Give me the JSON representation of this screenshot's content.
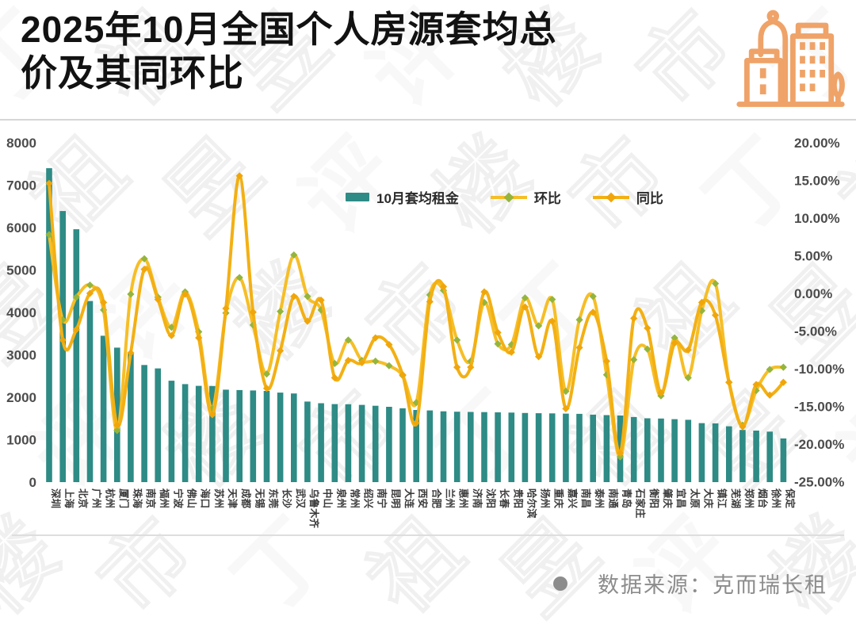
{
  "title": {
    "text": "2025年10月全国个人房源套均总价及其同环比",
    "lines": [
      "2025年10月全国个人房源套均总",
      "价及其同环比"
    ]
  },
  "header_icon": "city-buildings",
  "watermark_text": "丁祖昱评楼市",
  "footer": {
    "source": "数据来源：克而瑞长租"
  },
  "colors": {
    "bar": "#2E8B85",
    "line_huanbi": "#F6BE27",
    "line_tongbi": "#F3B014",
    "marker_huanbi": "#94B53D",
    "marker_tongbi": "#F0A60A",
    "icon_orange": "#EFA368",
    "axis_text": "#4c4c4c",
    "category_text": "#3b3b3b"
  },
  "chart_data": {
    "type": "bar+line combo",
    "title": "2025年10月全国个人房源套均总价及其同环比",
    "categories": [
      "深圳",
      "上海",
      "北京",
      "广州",
      "杭州",
      "厦门",
      "珠海",
      "南京",
      "福州",
      "宁波",
      "佛山",
      "海口",
      "苏州",
      "天津",
      "成都",
      "无锡",
      "东莞",
      "长沙",
      "武汉",
      "乌鲁木齐",
      "中山",
      "泉州",
      "常州",
      "绍兴",
      "南宁",
      "昆明",
      "大连",
      "西安",
      "合肥",
      "兰州",
      "惠州",
      "济南",
      "沈阳",
      "长春",
      "贵阳",
      "哈尔滨",
      "扬州",
      "重庆",
      "嘉兴",
      "南昌",
      "泰州",
      "南通",
      "青岛",
      "石家庄",
      "衡阳",
      "肇庆",
      "宜昌",
      "太原",
      "大庆",
      "镇江",
      "芜湖",
      "郑州",
      "烟台",
      "徐州",
      "保定"
    ],
    "series": [
      {
        "name": "10月套均租金",
        "type": "bar",
        "axis": "left",
        "color": "#2E8B85",
        "values": [
          7400,
          6390,
          5960,
          4270,
          3450,
          3170,
          3060,
          2760,
          2680,
          2390,
          2310,
          2270,
          2265,
          2180,
          2170,
          2160,
          2150,
          2110,
          2090,
          1900,
          1860,
          1840,
          1835,
          1820,
          1800,
          1775,
          1740,
          1700,
          1690,
          1670,
          1660,
          1655,
          1650,
          1645,
          1640,
          1630,
          1625,
          1620,
          1615,
          1610,
          1590,
          1580,
          1570,
          1535,
          1505,
          1500,
          1485,
          1470,
          1390,
          1385,
          1315,
          1230,
          1215,
          1190,
          1030
        ]
      },
      {
        "name": "环比",
        "type": "line",
        "axis": "right",
        "color": "#F6BE27",
        "marker": "#94B53D",
        "values": [
          7.8,
          -3.5,
          -0.5,
          1.1,
          -2.2,
          -18.2,
          -0.1,
          4.6,
          -0.5,
          -4.5,
          0.2,
          -5.1,
          -15.3,
          -2.6,
          2.1,
          -4.2,
          -10.7,
          -2.4,
          5.1,
          -0.4,
          -2.2,
          -9.3,
          -6.2,
          -8.9,
          -9.0,
          -9.6,
          -10.9,
          -14.5,
          -0.2,
          0.4,
          -6.2,
          -9.0,
          -1.2,
          -6.7,
          -6.8,
          -0.6,
          -4.3,
          -0.8,
          -13.0,
          -3.5,
          -0.4,
          -10.8,
          -21.7,
          -8.8,
          -7.4,
          -13.6,
          -5.9,
          -11.2,
          -2.3,
          1.3,
          -11.8,
          -17.5,
          -12.9,
          -10.1,
          -9.8
        ]
      },
      {
        "name": "同比",
        "type": "line",
        "axis": "right",
        "color": "#F3B014",
        "marker": "#F0A60A",
        "values": [
          14.6,
          -6.2,
          -4.8,
          0.0,
          -1.2,
          -17.5,
          -7.9,
          3.2,
          -0.8,
          -5.6,
          -0.1,
          -5.9,
          -16.1,
          -2.0,
          15.6,
          -2.5,
          -12.6,
          -7.6,
          -0.4,
          -3.7,
          -0.9,
          -11.2,
          -8.9,
          -9.2,
          -5.9,
          -6.8,
          -10.8,
          -17.2,
          -1.1,
          0.9,
          -9.8,
          -9.8,
          0.2,
          -5.2,
          -7.8,
          -1.8,
          -8.4,
          -3.7,
          -15.3,
          -7.2,
          -2.5,
          -9.0,
          -21.2,
          -3.3,
          -4.6,
          -13.2,
          -6.6,
          -7.5,
          -1.2,
          -2.9,
          -11.8,
          -17.7,
          -12.1,
          -13.5,
          -11.8
        ]
      }
    ],
    "left_axis": {
      "min": 0,
      "max": 8000,
      "step": 1000,
      "ticks": [
        "8000",
        "7000",
        "6000",
        "5000",
        "4000",
        "3000",
        "2000",
        "1000",
        "0"
      ]
    },
    "right_axis": {
      "min": -25,
      "max": 20,
      "step": 5,
      "format": "percent",
      "ticks": [
        "20.00%",
        "15.00%",
        "10.00%",
        "5.00%",
        "0.00%",
        "-5.00%",
        "-10.00%",
        "-15.00%",
        "-20.00%",
        "-25.00%"
      ]
    },
    "grid": "off",
    "legend_position": "inside-top-center"
  }
}
